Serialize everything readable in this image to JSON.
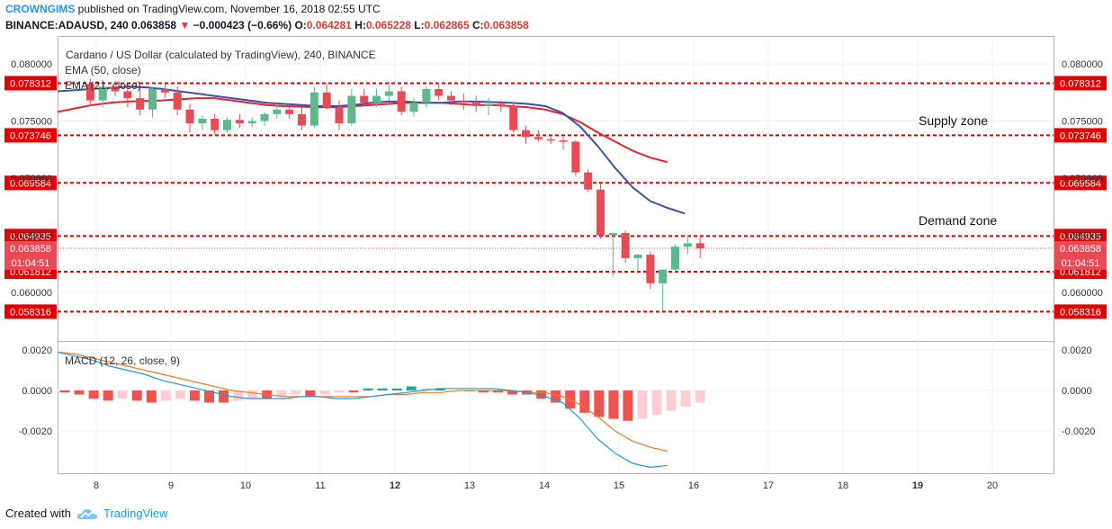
{
  "header": {
    "author": "CROWNGIMS",
    "published": "published on TradingView.com, November 16, 2018 02:55 UTC",
    "symbol": "BINANCE:ADAUSD, 240",
    "price": "0.063858",
    "change": "−0.000423 (−0.66%)",
    "o_label": "O:",
    "o": "0.064281",
    "h_label": "H:",
    "h": "0.065228",
    "l_label": "L:",
    "l": "0.062865",
    "c_label": "C:",
    "c": "0.063858"
  },
  "legend": {
    "title": "Cardano / US Dollar (calculated by TradingView), 240, BINANCE",
    "ema50": "EMA (50, close)",
    "ema21": "EMA (21, close)",
    "macd": "MACD (12, 26, close, 9)"
  },
  "annotations": {
    "supply": "Supply zone",
    "demand": "Demand zone"
  },
  "footer": {
    "created_with": "Created with",
    "brand": "TradingView"
  },
  "colors": {
    "bull": "#5fb88d",
    "bear": "#e84b56",
    "level": "#e00000",
    "ema50": "#e8222d",
    "ema21": "#3f51a6",
    "macd": "#1e9ae0",
    "signal": "#f07c28"
  },
  "chart_data": {
    "type": "line",
    "x_labels": [
      "8",
      "9",
      "10",
      "11",
      "12",
      "13",
      "14",
      "15",
      "16",
      "17",
      "18",
      "19",
      "20"
    ],
    "price_ticks": [
      "0.080000",
      "0.075000",
      "0.070000",
      "0.065000",
      "0.060000"
    ],
    "level_labels": [
      "0.078312",
      "0.073746",
      "0.069584",
      "0.064935",
      "0.061812",
      "0.058316"
    ],
    "current_price": "0.063858",
    "countdown": "01:04:51",
    "macd_ticks": [
      "0.0020",
      "0.0000",
      "-0.0020"
    ],
    "candles": [
      [
        0.07824,
        0.0787,
        0.0765,
        0.0768
      ],
      [
        0.0768,
        0.0786,
        0.0762,
        0.078
      ],
      [
        0.078,
        0.0785,
        0.0772,
        0.0776
      ],
      [
        0.0776,
        0.0783,
        0.0762,
        0.077
      ],
      [
        0.077,
        0.078,
        0.0755,
        0.076
      ],
      [
        0.076,
        0.078,
        0.0753,
        0.0778
      ],
      [
        0.0778,
        0.0782,
        0.077,
        0.0775
      ],
      [
        0.0775,
        0.078,
        0.0755,
        0.076
      ],
      [
        0.076,
        0.0765,
        0.074,
        0.0748
      ],
      [
        0.0748,
        0.0755,
        0.0742,
        0.0752
      ],
      [
        0.0752,
        0.0756,
        0.0738,
        0.0742
      ],
      [
        0.0742,
        0.0753,
        0.074,
        0.0751
      ],
      [
        0.0751,
        0.0756,
        0.0744,
        0.0748
      ],
      [
        0.0748,
        0.0753,
        0.0745,
        0.075
      ],
      [
        0.075,
        0.0758,
        0.0746,
        0.0756
      ],
      [
        0.0756,
        0.0764,
        0.0752,
        0.076
      ],
      [
        0.076,
        0.0762,
        0.0752,
        0.0756
      ],
      [
        0.0756,
        0.0762,
        0.0742,
        0.0746
      ],
      [
        0.0746,
        0.078,
        0.0744,
        0.0775
      ],
      [
        0.0775,
        0.0783,
        0.076,
        0.0762
      ],
      [
        0.0762,
        0.0768,
        0.0742,
        0.0748
      ],
      [
        0.0748,
        0.0778,
        0.0746,
        0.0772
      ],
      [
        0.0772,
        0.0778,
        0.0764,
        0.0766
      ],
      [
        0.0766,
        0.0778,
        0.0762,
        0.0772
      ],
      [
        0.0772,
        0.0784,
        0.0768,
        0.0776
      ],
      [
        0.0776,
        0.078,
        0.0755,
        0.0758
      ],
      [
        0.0758,
        0.077,
        0.0754,
        0.0766
      ],
      [
        0.0766,
        0.078,
        0.0762,
        0.0778
      ],
      [
        0.0778,
        0.0784,
        0.0768,
        0.0772
      ],
      [
        0.0772,
        0.0776,
        0.0764,
        0.0768
      ],
      [
        0.0768,
        0.0774,
        0.076,
        0.0766
      ],
      [
        0.0766,
        0.0772,
        0.0758,
        0.0764
      ],
      [
        0.0764,
        0.077,
        0.0755,
        0.0765
      ],
      [
        0.0765,
        0.0768,
        0.0758,
        0.0763
      ],
      [
        0.0763,
        0.0766,
        0.074,
        0.0742
      ],
      [
        0.0742,
        0.0746,
        0.073,
        0.0736
      ],
      [
        0.0736,
        0.0742,
        0.0732,
        0.0734
      ],
      [
        0.0734,
        0.0738,
        0.073,
        0.0733
      ],
      [
        0.0733,
        0.0736,
        0.0725,
        0.0732
      ],
      [
        0.0732,
        0.0733,
        0.0702,
        0.0705
      ],
      [
        0.0705,
        0.0708,
        0.0688,
        0.069
      ],
      [
        0.069,
        0.0695,
        0.0647,
        0.065
      ],
      [
        0.065,
        0.0652,
        0.0614,
        0.0652
      ],
      [
        0.0652,
        0.0654,
        0.0626,
        0.063
      ],
      [
        0.063,
        0.0634,
        0.0618,
        0.0633
      ],
      [
        0.0633,
        0.0636,
        0.0603,
        0.0608
      ],
      [
        0.0608,
        0.062,
        0.0584,
        0.062
      ],
      [
        0.062,
        0.0642,
        0.0618,
        0.064
      ],
      [
        0.064,
        0.065,
        0.0633,
        0.0643
      ],
      [
        0.0643,
        0.065,
        0.063,
        0.06386
      ]
    ],
    "ema50": [
      0.0758,
      0.0761,
      0.0764,
      0.0766,
      0.0767,
      0.07675,
      0.0768,
      0.0769,
      0.077,
      0.077,
      0.0768,
      0.0766,
      0.0764,
      0.0763,
      0.07625,
      0.0762,
      0.0762,
      0.0763,
      0.0764,
      0.0765,
      0.0766,
      0.0766,
      0.0766,
      0.0765,
      0.0764,
      0.0764,
      0.0763,
      0.0762,
      0.076,
      0.0756,
      0.0749,
      0.074,
      0.0732,
      0.0724,
      0.0718,
      0.0714
    ],
    "ema21": [
      0.0776,
      0.0777,
      0.0778,
      0.0779,
      0.078,
      0.07795,
      0.0778,
      0.0776,
      0.0774,
      0.0772,
      0.077,
      0.0768,
      0.0766,
      0.0765,
      0.0764,
      0.0763,
      0.0763,
      0.0764,
      0.0766,
      0.0767,
      0.0767,
      0.0766,
      0.0766,
      0.0767,
      0.0767,
      0.07665,
      0.0766,
      0.0765,
      0.0763,
      0.0757,
      0.0745,
      0.0728,
      0.0709,
      0.0692,
      0.068,
      0.0674,
      0.0669
    ],
    "macd_hist": [
      -0.0001,
      -0.0002,
      -0.0004,
      -0.0005,
      -0.0004,
      -0.0005,
      -0.0006,
      -0.0005,
      -0.0004,
      -0.0005,
      -0.0006,
      -0.0006,
      -0.0005,
      -0.0004,
      -0.0004,
      -0.0003,
      -0.0002,
      -0.0003,
      -0.0002,
      -0.0001,
      -0.0001,
      0.0001,
      0.0001,
      0.0001,
      0.0002,
      0.0001,
      0.0001,
      0.0,
      0.0,
      -0.0001,
      -0.0001,
      -0.0002,
      -0.0002,
      -0.0004,
      -0.0006,
      -0.0009,
      -0.0011,
      -0.0013,
      -0.0014,
      -0.0015,
      -0.0014,
      -0.0012,
      -0.001,
      -0.0008,
      -0.0006
    ],
    "macd_line": [
      0.0019,
      0.0017,
      0.0015,
      0.0012,
      0.001,
      0.0008,
      0.0005,
      0.0003,
      0.0001,
      -0.0001,
      -0.0003,
      -0.0004,
      -0.0004,
      -0.0004,
      -0.0003,
      -0.0003,
      -0.0004,
      -0.0004,
      -0.0003,
      -0.0002,
      -0.0001,
      0.0,
      0.0001,
      0.0001,
      0.0001,
      0.0001,
      0.0,
      -0.0001,
      -0.0003,
      -0.0006,
      -0.0014,
      -0.0024,
      -0.0031,
      -0.0036,
      -0.0038,
      -0.0037
    ],
    "signal_line": [
      0.0019,
      0.0018,
      0.0016,
      0.0014,
      0.0012,
      0.001,
      0.0008,
      0.0006,
      0.0004,
      0.0002,
      0.0,
      -0.0001,
      -0.0002,
      -0.0003,
      -0.0003,
      -0.0003,
      -0.0003,
      -0.0003,
      -0.0003,
      -0.0002,
      -0.0002,
      -0.0001,
      -0.0001,
      0.0,
      0.0,
      0.0,
      0.0,
      -0.0001,
      -0.0001,
      -0.0003,
      -0.0007,
      -0.0013,
      -0.002,
      -0.0025,
      -0.0028,
      -0.003
    ]
  }
}
